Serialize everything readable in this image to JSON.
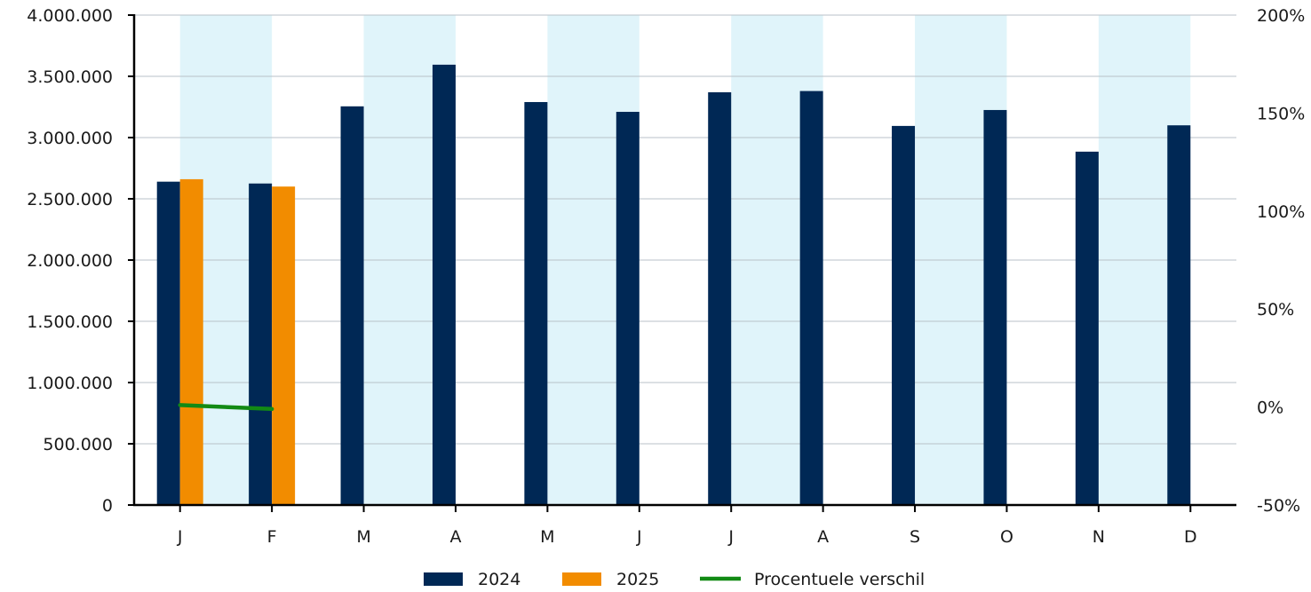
{
  "chart_data": {
    "type": "bar",
    "categories": [
      "J",
      "F",
      "M",
      "A",
      "M",
      "J",
      "J",
      "A",
      "S",
      "O",
      "N",
      "D"
    ],
    "series": [
      {
        "name": "2024",
        "kind": "bar",
        "axis": "left",
        "color": "#002855",
        "values": [
          2640000,
          2625000,
          3255000,
          3595000,
          3290000,
          3210000,
          3370000,
          3380000,
          3095000,
          3225000,
          2885000,
          3100000
        ]
      },
      {
        "name": "2025",
        "kind": "bar",
        "axis": "left",
        "color": "#f28c00",
        "values": [
          2660000,
          2600000,
          null,
          null,
          null,
          null,
          null,
          null,
          null,
          null,
          null,
          null
        ]
      },
      {
        "name": "Procentuele verschil",
        "kind": "line",
        "axis": "right",
        "color": "#128a14",
        "values": [
          1.0,
          -1.0,
          null,
          null,
          null,
          null,
          null,
          null,
          null,
          null,
          null,
          null
        ]
      }
    ],
    "yaxis_left": {
      "range": [
        0,
        4000000
      ],
      "ticks": [
        0,
        500000,
        1000000,
        1500000,
        2000000,
        2500000,
        3000000,
        3500000,
        4000000
      ],
      "tick_labels": [
        "0",
        "500.000",
        "1.000.000",
        "1.500.000",
        "2.000.000",
        "2.500.000",
        "3.000.000",
        "3.500.000",
        "4.000.000"
      ]
    },
    "yaxis_right": {
      "range": [
        -50,
        200
      ],
      "ticks": [
        -50,
        0,
        50,
        100,
        150,
        200
      ],
      "tick_labels": [
        "-50%",
        "0%",
        "50%",
        "100%",
        "150%",
        "200%"
      ]
    },
    "grid": true,
    "alternate_column_shading": true,
    "shading_color": "#e0f4fa",
    "legend_position": "bottom-center",
    "legend": [
      "2024",
      "2025",
      "Procentuele verschil"
    ]
  }
}
